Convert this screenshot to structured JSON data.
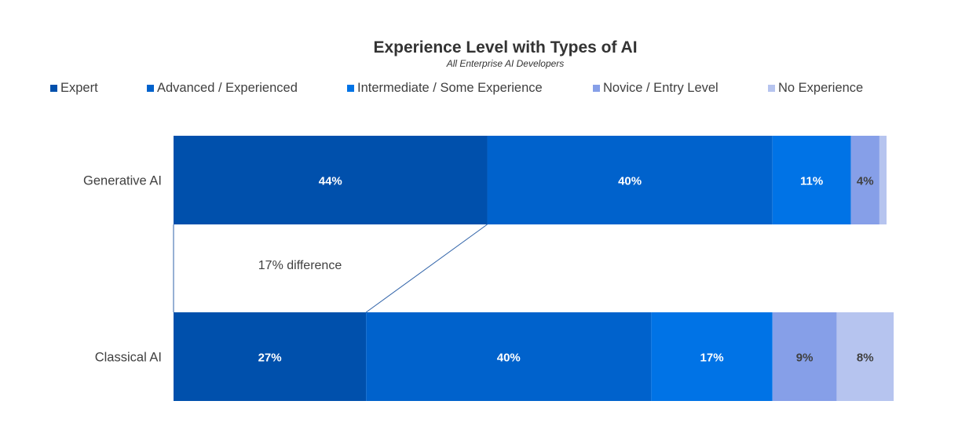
{
  "chart_data": {
    "type": "bar",
    "orientation": "horizontal",
    "stacked": true,
    "title": "Experience Level with Types of AI",
    "subtitle": "All Enterprise AI Developers",
    "categories": [
      "Generative AI",
      "Classical AI"
    ],
    "series": [
      {
        "name": "Expert",
        "color": "#0050ac",
        "values": [
          44,
          27
        ],
        "labels": [
          "44%",
          "27%"
        ]
      },
      {
        "name": "Advanced / Experienced",
        "color": "#0062cc",
        "values": [
          40,
          40
        ],
        "labels": [
          "40%",
          "40%"
        ]
      },
      {
        "name": "Intermediate / Some Experience",
        "color": "#0073e6",
        "values": [
          11,
          17
        ],
        "labels": [
          "11%",
          "17%"
        ]
      },
      {
        "name": "Novice / Entry Level",
        "color": "#869fe8",
        "values": [
          4,
          9
        ],
        "labels": [
          "4%",
          "9%"
        ]
      },
      {
        "name": "No Experience",
        "color": "#b6c4ef",
        "values": [
          1,
          8
        ],
        "labels": [
          "",
          "8%"
        ]
      }
    ],
    "xlim": [
      0,
      100
    ],
    "grid": false,
    "legend_position": "top",
    "annotation": {
      "text": "17% difference"
    }
  }
}
